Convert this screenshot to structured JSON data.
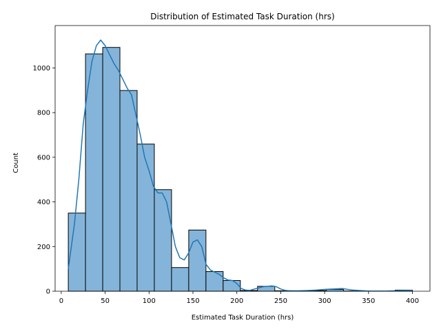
{
  "chart_data": {
    "type": "bar",
    "title": "Distribution of Estimated Task Duration (hrs)",
    "xlabel": "Estimated Task Duration (hrs)",
    "ylabel": "Count",
    "xlim": [
      -7,
      420
    ],
    "ylim": [
      0,
      1190
    ],
    "x_ticks": [
      0,
      50,
      100,
      150,
      200,
      250,
      300,
      350,
      400
    ],
    "y_ticks": [
      0,
      200,
      400,
      600,
      800,
      1000
    ],
    "grid": false,
    "bar_color": "#84b4d9",
    "bar_edge_color": "#000000",
    "kde_color": "#1f77b4",
    "bins": [
      {
        "x0": 8,
        "x1": 27.6,
        "count": 350
      },
      {
        "x0": 27.6,
        "x1": 47.2,
        "count": 1063
      },
      {
        "x0": 47.2,
        "x1": 66.8,
        "count": 1092
      },
      {
        "x0": 66.8,
        "x1": 86.4,
        "count": 899
      },
      {
        "x0": 86.4,
        "x1": 106.0,
        "count": 659
      },
      {
        "x0": 106.0,
        "x1": 125.6,
        "count": 455
      },
      {
        "x0": 125.6,
        "x1": 145.2,
        "count": 106
      },
      {
        "x0": 145.2,
        "x1": 164.8,
        "count": 274
      },
      {
        "x0": 164.8,
        "x1": 184.4,
        "count": 88
      },
      {
        "x0": 184.4,
        "x1": 204.0,
        "count": 48
      },
      {
        "x0": 204.0,
        "x1": 223.6,
        "count": 3
      },
      {
        "x0": 223.6,
        "x1": 243.2,
        "count": 22
      },
      {
        "x0": 243.2,
        "x1": 262.8,
        "count": 2
      },
      {
        "x0": 262.8,
        "x1": 282.4,
        "count": 1
      },
      {
        "x0": 282.4,
        "x1": 302.0,
        "count": 3
      },
      {
        "x0": 302.0,
        "x1": 321.6,
        "count": 8
      },
      {
        "x0": 321.6,
        "x1": 341.2,
        "count": 1
      },
      {
        "x0": 341.2,
        "x1": 360.8,
        "count": 1
      },
      {
        "x0": 360.8,
        "x1": 380.4,
        "count": 1
      },
      {
        "x0": 380.4,
        "x1": 400.0,
        "count": 5
      }
    ],
    "kde": {
      "x": [
        8,
        15,
        20,
        25,
        30,
        35,
        40,
        45,
        50,
        55,
        60,
        65,
        70,
        75,
        80,
        85,
        90,
        95,
        100,
        105,
        110,
        115,
        120,
        125,
        130,
        135,
        140,
        145,
        150,
        155,
        160,
        165,
        170,
        175,
        180,
        185,
        190,
        195,
        200,
        205,
        210,
        215,
        220,
        225,
        230,
        235,
        240,
        245,
        250,
        255,
        260,
        270,
        280,
        290,
        300,
        310,
        320,
        330,
        340,
        350,
        360,
        370,
        380,
        390,
        400
      ],
      "y": [
        100,
        300,
        500,
        750,
        900,
        1030,
        1100,
        1125,
        1100,
        1060,
        1020,
        990,
        950,
        910,
        880,
        790,
        700,
        600,
        540,
        470,
        440,
        440,
        400,
        300,
        200,
        150,
        140,
        170,
        220,
        230,
        200,
        120,
        95,
        85,
        75,
        60,
        50,
        48,
        35,
        12,
        5,
        4,
        10,
        15,
        20,
        22,
        24,
        20,
        10,
        4,
        2,
        2,
        3,
        5,
        8,
        10,
        12,
        6,
        3,
        1,
        1,
        1,
        2,
        3,
        4
      ]
    }
  }
}
